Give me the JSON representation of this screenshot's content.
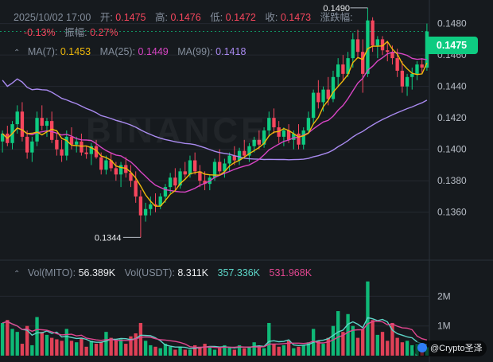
{
  "header": {
    "datetime": "2025/10/02 17:00",
    "open_label": "开:",
    "open": "0.1475",
    "high_label": "高:",
    "high": "0.1476",
    "low_label": "低:",
    "low": "0.1472",
    "close_label": "收:",
    "close": "0.1473",
    "change_label": "涨跌幅:",
    "change": "-0.13%",
    "amplitude_label": "振幅:",
    "amplitude": "0.27%"
  },
  "ma": {
    "ma7_label": "MA(7):",
    "ma7": "0.1453",
    "ma25_label": "MA(25):",
    "ma25": "0.1449",
    "ma99_label": "MA(99):",
    "ma99": "0.1418"
  },
  "volume": {
    "vol_mito_label": "Vol(MITO):",
    "vol_mito": "56.389K",
    "vol_usdt_label": "Vol(USDT):",
    "vol_usdt": "8.311K",
    "ma_a": "357.336K",
    "ma_b": "531.968K"
  },
  "price_badge": "0.1475",
  "annotations": {
    "high_marker": "0.1490",
    "low_marker": "0.1344"
  },
  "watermark": {
    "brand": "BINANCE",
    "author": "@Crypto圣泽"
  },
  "colors": {
    "up": "#0ECB81",
    "down": "#F6465D",
    "ma7": "#F0B90B",
    "ma25": "#D845C4",
    "ma99": "#A98AF0",
    "background": "#161A1E"
  },
  "chart_data": {
    "type": "candlestick",
    "y_axis": {
      "ticks": [
        "0.1480",
        "0.1460",
        "0.1440",
        "0.1420",
        "0.1400",
        "0.1380",
        "0.1360"
      ],
      "ylim": [
        0.133,
        0.1495
      ]
    },
    "volume_axis": {
      "ticks": [
        "2M",
        "1M"
      ],
      "ylim": [
        0,
        2600000
      ]
    },
    "candles": [
      [
        0.1405,
        0.1412,
        0.1398,
        0.141
      ],
      [
        0.141,
        0.1415,
        0.1402,
        0.1404
      ],
      [
        0.1404,
        0.1418,
        0.14,
        0.1416
      ],
      [
        0.1416,
        0.1428,
        0.141,
        0.1424
      ],
      [
        0.1424,
        0.143,
        0.1405,
        0.1408
      ],
      [
        0.1408,
        0.1412,
        0.1394,
        0.1398
      ],
      [
        0.1398,
        0.1408,
        0.1392,
        0.1405
      ],
      [
        0.1405,
        0.1424,
        0.1402,
        0.142
      ],
      [
        0.142,
        0.1428,
        0.1412,
        0.1415
      ],
      [
        0.1415,
        0.142,
        0.1408,
        0.1418
      ],
      [
        0.1418,
        0.1424,
        0.1404,
        0.1406
      ],
      [
        0.1406,
        0.141,
        0.1396,
        0.14
      ],
      [
        0.14,
        0.1406,
        0.1392,
        0.1396
      ],
      [
        0.1396,
        0.1412,
        0.1393,
        0.1408
      ],
      [
        0.1408,
        0.1414,
        0.14,
        0.1403
      ],
      [
        0.1403,
        0.1408,
        0.1398,
        0.1405
      ],
      [
        0.1405,
        0.141,
        0.1396,
        0.1398
      ],
      [
        0.1398,
        0.1402,
        0.1394,
        0.1397
      ],
      [
        0.1397,
        0.1404,
        0.139,
        0.1402
      ],
      [
        0.1402,
        0.1406,
        0.1394,
        0.1395
      ],
      [
        0.1395,
        0.1398,
        0.1384,
        0.1387
      ],
      [
        0.1387,
        0.1396,
        0.1384,
        0.1393
      ],
      [
        0.1393,
        0.1398,
        0.1386,
        0.1388
      ],
      [
        0.1388,
        0.1392,
        0.138,
        0.1384
      ],
      [
        0.1384,
        0.1392,
        0.1376,
        0.139
      ],
      [
        0.139,
        0.1395,
        0.1382,
        0.1385
      ],
      [
        0.1385,
        0.139,
        0.1376,
        0.138
      ],
      [
        0.138,
        0.1386,
        0.1366,
        0.137
      ],
      [
        0.137,
        0.1374,
        0.1344,
        0.1358
      ],
      [
        0.1358,
        0.1366,
        0.1354,
        0.1362
      ],
      [
        0.1362,
        0.137,
        0.1358,
        0.1365
      ],
      [
        0.1365,
        0.1372,
        0.136,
        0.1364
      ],
      [
        0.1364,
        0.1372,
        0.1362,
        0.137
      ],
      [
        0.137,
        0.1378,
        0.1366,
        0.1376
      ],
      [
        0.1376,
        0.1385,
        0.1372,
        0.1382
      ],
      [
        0.1382,
        0.1388,
        0.1374,
        0.1377
      ],
      [
        0.1377,
        0.1388,
        0.1375,
        0.1386
      ],
      [
        0.1386,
        0.1392,
        0.1382,
        0.1384
      ],
      [
        0.1384,
        0.1396,
        0.1382,
        0.1393
      ],
      [
        0.1393,
        0.1398,
        0.1384,
        0.1386
      ],
      [
        0.1386,
        0.139,
        0.1376,
        0.138
      ],
      [
        0.138,
        0.1386,
        0.1374,
        0.1378
      ],
      [
        0.1378,
        0.1384,
        0.1374,
        0.1382
      ],
      [
        0.1382,
        0.1394,
        0.138,
        0.1392
      ],
      [
        0.1392,
        0.14,
        0.1384,
        0.1386
      ],
      [
        0.1386,
        0.1394,
        0.1382,
        0.1391
      ],
      [
        0.1391,
        0.1398,
        0.1386,
        0.1396
      ],
      [
        0.1396,
        0.1402,
        0.139,
        0.1393
      ],
      [
        0.1393,
        0.1401,
        0.139,
        0.1399
      ],
      [
        0.1399,
        0.1406,
        0.1394,
        0.1396
      ],
      [
        0.1396,
        0.1404,
        0.1392,
        0.1402
      ],
      [
        0.1402,
        0.1408,
        0.1398,
        0.1406
      ],
      [
        0.1406,
        0.1412,
        0.14,
        0.1403
      ],
      [
        0.1403,
        0.1414,
        0.1401,
        0.1412
      ],
      [
        0.1412,
        0.1424,
        0.1408,
        0.142
      ],
      [
        0.142,
        0.1426,
        0.141,
        0.1414
      ],
      [
        0.1414,
        0.1418,
        0.1404,
        0.1408
      ],
      [
        0.1408,
        0.1414,
        0.1402,
        0.1412
      ],
      [
        0.1412,
        0.1416,
        0.1404,
        0.1406
      ],
      [
        0.1406,
        0.1412,
        0.14,
        0.141
      ],
      [
        0.141,
        0.1416,
        0.14,
        0.1403
      ],
      [
        0.1403,
        0.1414,
        0.14,
        0.1412
      ],
      [
        0.1412,
        0.1424,
        0.141,
        0.142
      ],
      [
        0.142,
        0.1438,
        0.1416,
        0.1436
      ],
      [
        0.1436,
        0.1444,
        0.1426,
        0.143
      ],
      [
        0.143,
        0.144,
        0.1424,
        0.1438
      ],
      [
        0.1438,
        0.1446,
        0.1428,
        0.1432
      ],
      [
        0.1432,
        0.145,
        0.143,
        0.1446
      ],
      [
        0.1446,
        0.1458,
        0.144,
        0.1454
      ],
      [
        0.1454,
        0.146,
        0.1444,
        0.1448
      ],
      [
        0.1448,
        0.1462,
        0.1446,
        0.1458
      ],
      [
        0.1458,
        0.1474,
        0.1452,
        0.147
      ],
      [
        0.147,
        0.1476,
        0.1458,
        0.1462
      ],
      [
        0.1462,
        0.147,
        0.1436,
        0.1448
      ],
      [
        0.1448,
        0.149,
        0.1446,
        0.1482
      ],
      [
        0.1482,
        0.1484,
        0.1462,
        0.1466
      ],
      [
        0.1466,
        0.1472,
        0.1458,
        0.147
      ],
      [
        0.147,
        0.1472,
        0.146,
        0.1463
      ],
      [
        0.1463,
        0.1468,
        0.1456,
        0.1462
      ],
      [
        0.1462,
        0.1466,
        0.1454,
        0.1458
      ],
      [
        0.1458,
        0.1464,
        0.1446,
        0.145
      ],
      [
        0.145,
        0.1456,
        0.1436,
        0.144
      ],
      [
        0.144,
        0.1448,
        0.1434,
        0.1446
      ],
      [
        0.1446,
        0.1452,
        0.1438,
        0.1448
      ],
      [
        0.1448,
        0.1456,
        0.1444,
        0.1454
      ],
      [
        0.1454,
        0.1458,
        0.1448,
        0.1452
      ],
      [
        0.1452,
        0.148,
        0.145,
        0.1475
      ]
    ],
    "volumes": [
      1100000,
      1200000,
      900000,
      800000,
      400000,
      1000000,
      350000,
      1300000,
      800000,
      700000,
      600000,
      550000,
      500000,
      900000,
      500000,
      450000,
      600000,
      300000,
      500000,
      400000,
      450000,
      800000,
      600000,
      500000,
      550000,
      400000,
      650000,
      750000,
      1100000,
      500000,
      350000,
      300000,
      250000,
      400000,
      300000,
      200000,
      300000,
      200000,
      200000,
      350000,
      300000,
      400000,
      300000,
      200000,
      250000,
      350000,
      300000,
      200000,
      350000,
      250000,
      300000,
      450000,
      300000,
      250000,
      1100000,
      400000,
      300000,
      350000,
      500000,
      250000,
      300000,
      350000,
      450000,
      900000,
      500000,
      400000,
      600000,
      1000000,
      1500000,
      800000,
      1400000,
      1000000,
      600000,
      900000,
      2500000,
      1200000,
      700000,
      800000,
      500000,
      1100000,
      600000,
      450000,
      500000,
      350000,
      400000,
      300000,
      280000
    ]
  }
}
